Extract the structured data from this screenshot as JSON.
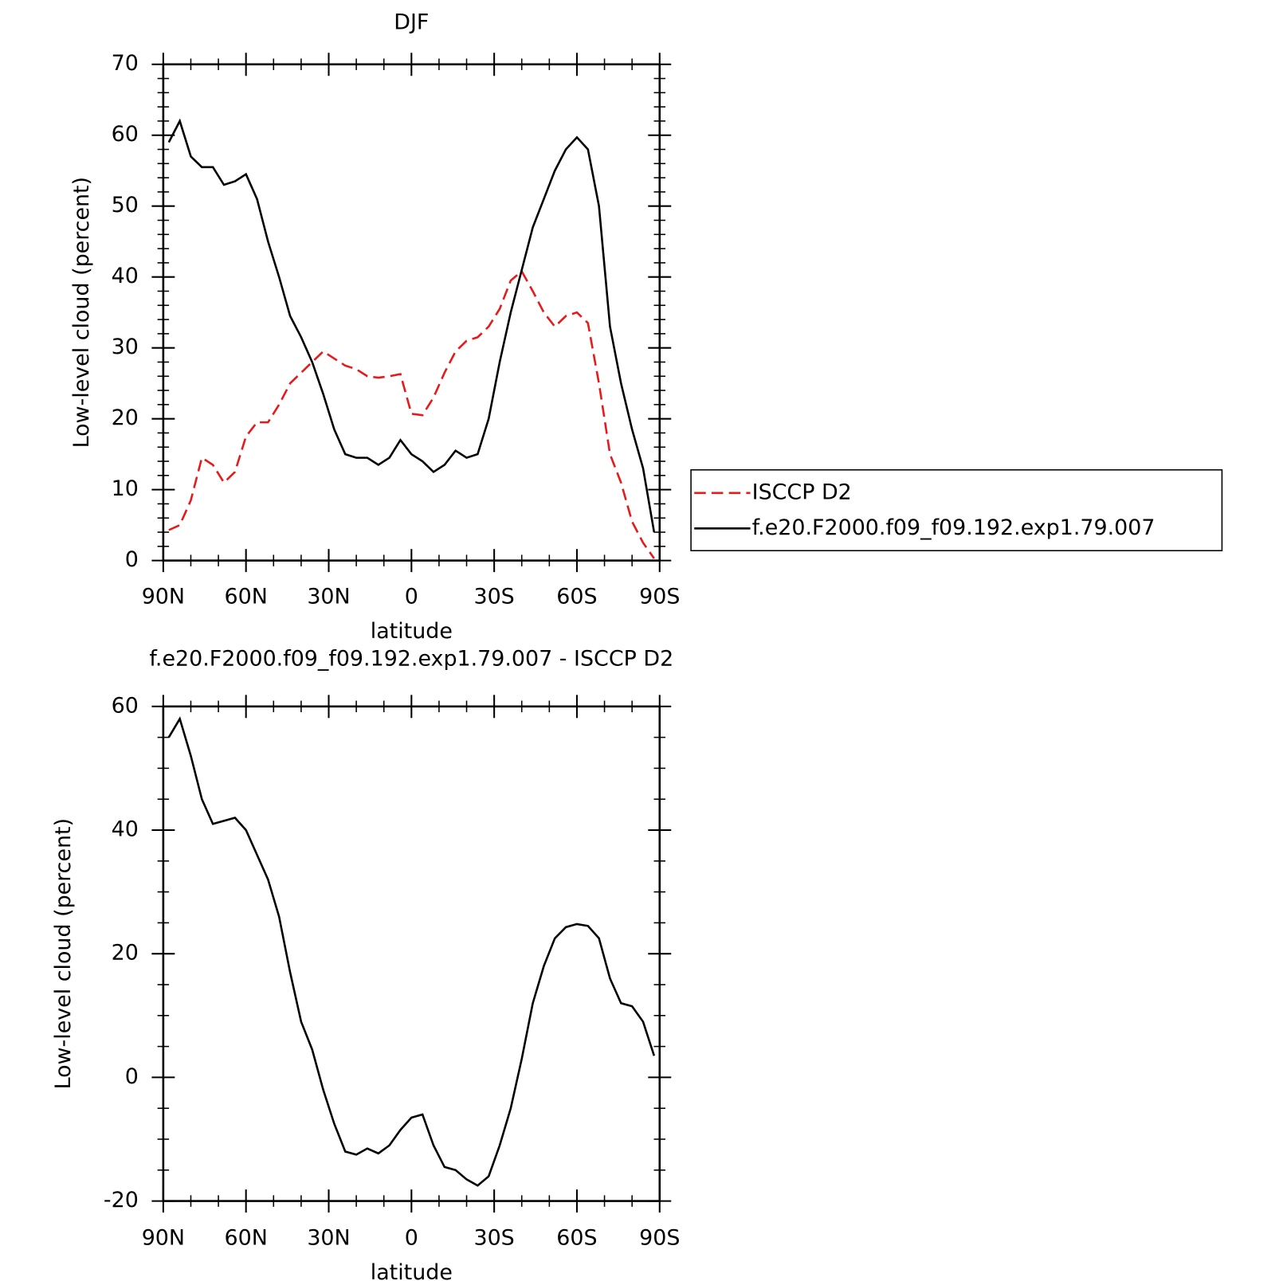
{
  "chart_data": [
    {
      "type": "line",
      "title": "DJF",
      "xlabel": "latitude",
      "ylabel": "Low-level cloud (percent)",
      "x": [
        88,
        84,
        80,
        76,
        72,
        68,
        64,
        60,
        56,
        52,
        48,
        44,
        40,
        36,
        32,
        28,
        24,
        20,
        16,
        12,
        8,
        4,
        0,
        -4,
        -8,
        -12,
        -16,
        -20,
        -24,
        -28,
        -32,
        -36,
        -40,
        -44,
        -48,
        -52,
        -56,
        -60,
        -64,
        -68,
        -72,
        -76,
        -80,
        -84,
        -88
      ],
      "xlim": [
        90,
        -90
      ],
      "xticks": [
        {
          "value": 90,
          "label": "90N"
        },
        {
          "value": 60,
          "label": "60N"
        },
        {
          "value": 30,
          "label": "30N"
        },
        0,
        {
          "value": -30,
          "label": "30S"
        },
        {
          "value": -60,
          "label": "60S"
        },
        {
          "value": -90,
          "label": "90S"
        }
      ],
      "ylim": [
        0,
        70
      ],
      "yticks": [
        0,
        10,
        20,
        30,
        40,
        50,
        60,
        70
      ],
      "legend": "right",
      "series": [
        {
          "name": "ISCCP D2",
          "color": "#e8191a",
          "dash": true,
          "values": [
            4.3,
            5,
            8.5,
            14.5,
            13.5,
            11,
            12.5,
            17.5,
            19.5,
            19.5,
            22,
            25,
            26.5,
            28,
            29.5,
            28.5,
            27.5,
            27,
            26,
            25.8,
            26,
            26.3,
            20.7,
            20.5,
            23,
            26.5,
            29.5,
            31,
            31.5,
            33,
            35.5,
            39.5,
            40.8,
            38,
            35,
            33,
            34.5,
            35,
            33.5,
            25,
            15,
            11,
            5.5,
            2.5,
            0.3
          ]
        },
        {
          "name": "f.e20.F2000.f09_f09.192.exp1.79.007",
          "color": "#000000",
          "dash": false,
          "values": [
            59,
            62,
            57,
            55.5,
            55.5,
            53,
            53.5,
            54.5,
            51,
            45,
            40,
            34.5,
            31.5,
            28,
            23.5,
            18.5,
            15,
            14.5,
            14.5,
            13.5,
            14.5,
            17,
            15,
            14,
            12.5,
            13.5,
            15.5,
            14.5,
            15,
            20,
            28,
            35,
            41,
            47,
            51,
            55,
            58,
            59.7,
            58,
            50,
            33,
            25,
            18.5,
            13,
            4
          ]
        }
      ]
    },
    {
      "type": "line",
      "title": "f.e20.F2000.f09_f09.192.exp1.79.007 - ISCCP D2",
      "xlabel": "latitude",
      "ylabel": "Low-level cloud (percent)",
      "x": [
        88,
        84,
        80,
        76,
        72,
        68,
        64,
        60,
        56,
        52,
        48,
        44,
        40,
        36,
        32,
        28,
        24,
        20,
        16,
        12,
        8,
        4,
        0,
        -4,
        -8,
        -12,
        -16,
        -20,
        -24,
        -28,
        -32,
        -36,
        -40,
        -44,
        -48,
        -52,
        -56,
        -60,
        -64,
        -68,
        -72,
        -76,
        -80,
        -84,
        -88
      ],
      "xlim": [
        90,
        -90
      ],
      "xticks": [
        {
          "value": 90,
          "label": "90N"
        },
        {
          "value": 60,
          "label": "60N"
        },
        {
          "value": 30,
          "label": "30N"
        },
        0,
        {
          "value": -30,
          "label": "30S"
        },
        {
          "value": -60,
          "label": "60S"
        },
        {
          "value": -90,
          "label": "90S"
        }
      ],
      "ylim": [
        -20,
        60
      ],
      "yticks": [
        -20,
        0,
        20,
        40,
        60
      ],
      "series": [
        {
          "color": "#000000",
          "values": [
            55,
            58,
            52,
            45,
            41,
            41.5,
            42,
            40,
            36,
            32,
            26,
            17,
            9,
            4.5,
            -2,
            -7.5,
            -12,
            -12.5,
            -11.5,
            -12.3,
            -11,
            -8.5,
            -6.5,
            -6,
            -11,
            -14.5,
            -15,
            -16.5,
            -17.5,
            -16,
            -11,
            -5,
            3,
            12,
            18,
            22.5,
            24.3,
            24.8,
            24.5,
            22.5,
            16,
            12,
            11.5,
            9,
            3.5
          ]
        }
      ]
    }
  ]
}
